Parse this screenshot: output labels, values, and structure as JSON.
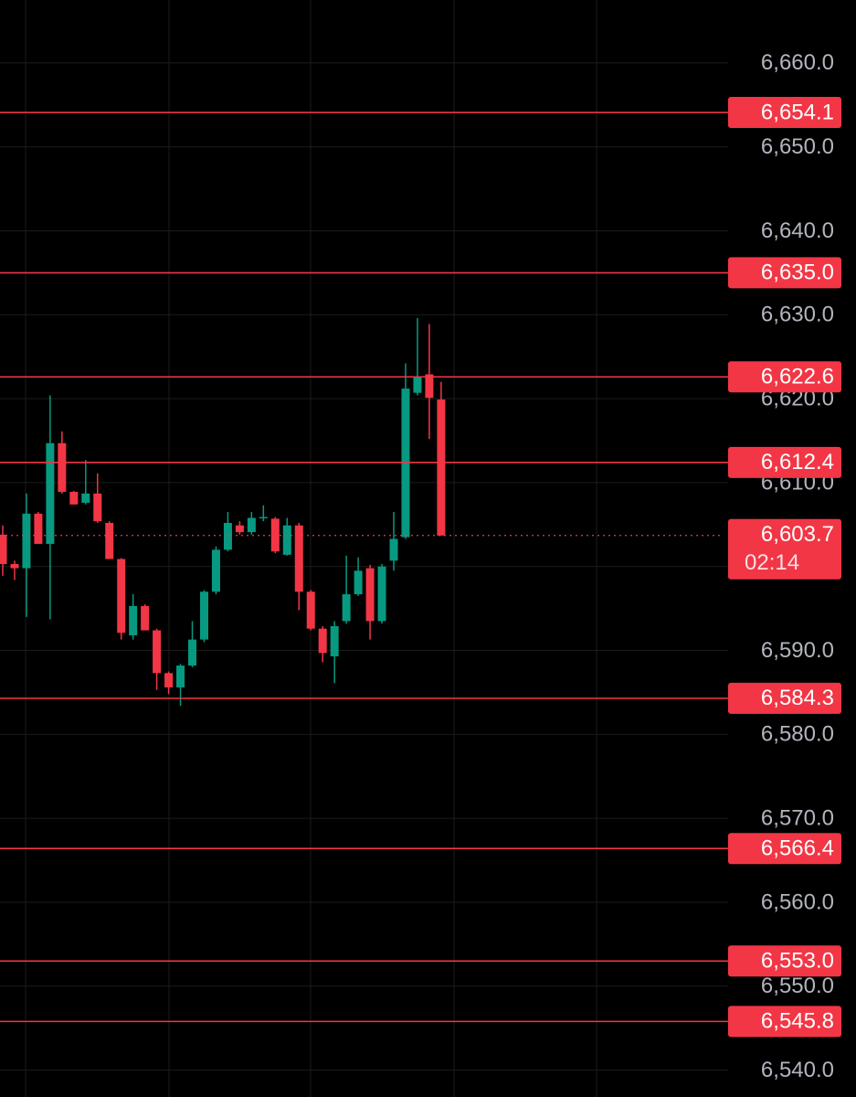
{
  "chart_data": {
    "type": "candlestick",
    "up_color": "#089981",
    "down_color": "#f23645",
    "level_color": "#f23645",
    "grid": true,
    "ylim": [
      6536.8,
      6667.5
    ],
    "yticks": [
      {
        "value": 6660,
        "label": "6,660.0"
      },
      {
        "value": 6650,
        "label": "6,650.0"
      },
      {
        "value": 6640,
        "label": "6,640.0"
      },
      {
        "value": 6630,
        "label": "6,630.0"
      },
      {
        "value": 6620,
        "label": "6,620.0"
      },
      {
        "value": 6610,
        "label": "6,610.0"
      },
      {
        "value": 6600,
        "label": "6,600.0"
      },
      {
        "value": 6590,
        "label": "6,590.0"
      },
      {
        "value": 6580,
        "label": "6,580.0"
      },
      {
        "value": 6570,
        "label": "6,570.0"
      },
      {
        "value": 6560,
        "label": "6,560.0"
      },
      {
        "value": 6550,
        "label": "6,550.0"
      },
      {
        "value": 6540,
        "label": "6,540.0"
      }
    ],
    "levels": [
      {
        "value": 6654.1,
        "label": "6,654.1"
      },
      {
        "value": 6635.0,
        "label": "6,635.0"
      },
      {
        "value": 6622.6,
        "label": "6,622.6"
      },
      {
        "value": 6612.4,
        "label": "6,612.4"
      },
      {
        "value": 6584.3,
        "label": "6,584.3"
      },
      {
        "value": 6566.4,
        "label": "6,566.4"
      },
      {
        "value": 6553.0,
        "label": "6,553.0"
      },
      {
        "value": 6545.8,
        "label": "6,545.8"
      }
    ],
    "current_price": {
      "value": 6603.7,
      "label": "6,603.7",
      "timer": "02:14"
    },
    "candles": [
      {
        "open": 6603.8,
        "high": 6604.9,
        "low": 6598.9,
        "close": 6600.3
      },
      {
        "open": 6600.3,
        "high": 6600.7,
        "low": 6598.4,
        "close": 6599.8
      },
      {
        "open": 6599.8,
        "high": 6608.7,
        "low": 6594.0,
        "close": 6606.3
      },
      {
        "open": 6606.3,
        "high": 6606.5,
        "low": 6602.7,
        "close": 6602.7
      },
      {
        "open": 6602.7,
        "high": 6620.4,
        "low": 6593.7,
        "close": 6614.7
      },
      {
        "open": 6614.7,
        "high": 6616.1,
        "low": 6608.7,
        "close": 6608.9
      },
      {
        "open": 6608.9,
        "high": 6609.0,
        "low": 6607.4,
        "close": 6607.4
      },
      {
        "open": 6607.6,
        "high": 6612.7,
        "low": 6607.4,
        "close": 6608.7
      },
      {
        "open": 6608.7,
        "high": 6611.1,
        "low": 6605.2,
        "close": 6605.4
      },
      {
        "open": 6605.2,
        "high": 6605.4,
        "low": 6600.9,
        "close": 6600.9
      },
      {
        "open": 6600.9,
        "high": 6601.0,
        "low": 6591.3,
        "close": 6592.1
      },
      {
        "open": 6591.8,
        "high": 6596.7,
        "low": 6591.3,
        "close": 6595.3
      },
      {
        "open": 6595.3,
        "high": 6595.5,
        "low": 6592.4,
        "close": 6592.4
      },
      {
        "open": 6592.4,
        "high": 6592.6,
        "low": 6585.3,
        "close": 6587.3
      },
      {
        "open": 6587.3,
        "high": 6587.5,
        "low": 6584.8,
        "close": 6585.6
      },
      {
        "open": 6585.6,
        "high": 6588.4,
        "low": 6583.4,
        "close": 6588.2
      },
      {
        "open": 6588.2,
        "high": 6593.5,
        "low": 6588.0,
        "close": 6591.3
      },
      {
        "open": 6591.3,
        "high": 6597.2,
        "low": 6591.0,
        "close": 6597.0
      },
      {
        "open": 6597.0,
        "high": 6602.4,
        "low": 6596.7,
        "close": 6602.0
      },
      {
        "open": 6602.0,
        "high": 6606.5,
        "low": 6601.8,
        "close": 6605.2
      },
      {
        "open": 6604.9,
        "high": 6605.4,
        "low": 6603.8,
        "close": 6604.1
      },
      {
        "open": 6604.1,
        "high": 6606.5,
        "low": 6603.8,
        "close": 6605.8
      },
      {
        "open": 6605.8,
        "high": 6607.3,
        "low": 6605.4,
        "close": 6605.9
      },
      {
        "open": 6605.7,
        "high": 6605.9,
        "low": 6601.6,
        "close": 6601.8
      },
      {
        "open": 6601.4,
        "high": 6605.8,
        "low": 6601.3,
        "close": 6604.9
      },
      {
        "open": 6604.9,
        "high": 6605.2,
        "low": 6594.8,
        "close": 6597.0
      },
      {
        "open": 6597.0,
        "high": 6597.2,
        "low": 6592.4,
        "close": 6592.6
      },
      {
        "open": 6592.6,
        "high": 6592.9,
        "low": 6588.6,
        "close": 6589.7
      },
      {
        "open": 6589.3,
        "high": 6593.5,
        "low": 6586.1,
        "close": 6592.9
      },
      {
        "open": 6593.5,
        "high": 6601.3,
        "low": 6593.2,
        "close": 6596.7
      },
      {
        "open": 6596.7,
        "high": 6601.1,
        "low": 6596.5,
        "close": 6599.5
      },
      {
        "open": 6599.8,
        "high": 6600.2,
        "low": 6591.3,
        "close": 6593.5
      },
      {
        "open": 6593.5,
        "high": 6600.3,
        "low": 6593.2,
        "close": 6600.0
      },
      {
        "open": 6600.7,
        "high": 6606.5,
        "low": 6599.5,
        "close": 6603.3
      },
      {
        "open": 6603.5,
        "high": 6624.2,
        "low": 6603.3,
        "close": 6621.2
      },
      {
        "open": 6620.7,
        "high": 6629.6,
        "low": 6620.4,
        "close": 6622.6
      },
      {
        "open": 6622.9,
        "high": 6628.9,
        "low": 6615.2,
        "close": 6620.1
      },
      {
        "open": 6619.9,
        "high": 6622.0,
        "low": 6603.7,
        "close": 6603.7
      }
    ]
  }
}
